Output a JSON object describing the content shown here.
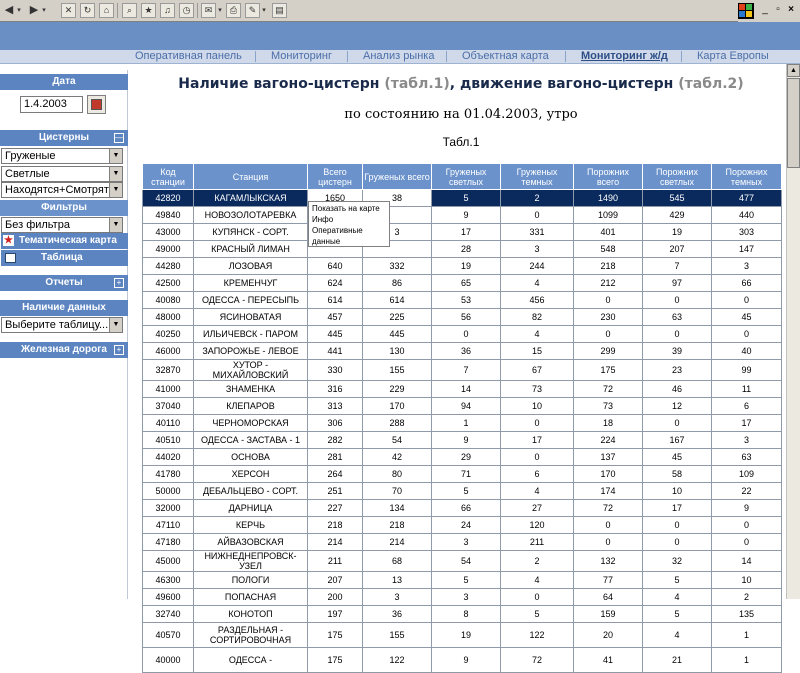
{
  "toolbar": {
    "icons": [
      "back-arrow",
      "forward-arrow",
      "stop",
      "refresh",
      "home",
      "search",
      "favorites",
      "media",
      "history",
      "mail",
      "print",
      "edit"
    ],
    "window_controls": [
      "_",
      "▫",
      "×"
    ]
  },
  "nav": {
    "items": [
      {
        "label": "Оперативная панель",
        "active": false
      },
      {
        "label": "Мониторинг",
        "active": false
      },
      {
        "label": "Анализ рынка",
        "active": false
      },
      {
        "label": "Объектная карта",
        "active": false
      },
      {
        "label": "Мониторинг ж/д",
        "active": true
      },
      {
        "label": "Карта Европы",
        "active": false
      }
    ]
  },
  "sidebar": {
    "date_header": "Дата",
    "date_value": "1.4.2003",
    "tanks_header": "Цистерны",
    "selects": [
      "Груженые",
      "Светлые",
      "Находятся+Смотрят"
    ],
    "filters_header": "Фильтры",
    "filter_select": "Без фильтра",
    "thematic_map": "Тематическая карта",
    "table_link": "Таблица",
    "reports_header": "Отчеты",
    "availability_header": "Наличие данных",
    "availability_select": "Выберите таблицу...",
    "railway_header": "Железная дорога",
    "collapse_glyph": "—",
    "expand_glyph": "+"
  },
  "main": {
    "title_prefix": "Наличие вагоно-цистерн ",
    "title_tab1": "(табл.1)",
    "title_middle": ", движение вагоно-цистерн ",
    "title_tab2": "(табл.2)",
    "subtitle": "по состоянию на 01.04.2003, утро",
    "table_label": "Табл.1"
  },
  "table": {
    "columns": [
      "Код станции",
      "Станция",
      "Всего цистерн",
      "Груженых всего",
      "Груженых светлых",
      "Груженых темных",
      "Порожних всего",
      "Порожних светлых",
      "Порожних темных"
    ],
    "rows": [
      [
        "42820",
        "КАГАМЛЫКСКАЯ",
        "1650",
        "38",
        "5",
        "2",
        "1490",
        "545",
        "477"
      ],
      [
        "49840",
        "НОВОЗОЛОТАРЕВКА",
        "",
        "",
        "9",
        "0",
        "1099",
        "429",
        "440"
      ],
      [
        "43000",
        "КУПЯНСК - СОРТ.",
        "",
        "3",
        "17",
        "331",
        "401",
        "19",
        "303"
      ],
      [
        "49000",
        "КРАСНЫЙ ЛИМАН",
        "",
        "",
        "28",
        "3",
        "548",
        "207",
        "147"
      ],
      [
        "44280",
        "ЛОЗОВАЯ",
        "640",
        "332",
        "19",
        "244",
        "218",
        "7",
        "3"
      ],
      [
        "42500",
        "КРЕМЕНЧУГ",
        "624",
        "86",
        "65",
        "4",
        "212",
        "97",
        "66"
      ],
      [
        "40080",
        "ОДЕССА - ПЕРЕСЫПЬ",
        "614",
        "614",
        "53",
        "456",
        "0",
        "0",
        "0"
      ],
      [
        "48000",
        "ЯСИНОВАТАЯ",
        "457",
        "225",
        "56",
        "82",
        "230",
        "63",
        "45"
      ],
      [
        "40250",
        "ИЛЬИЧЕВСК - ПАРОМ",
        "445",
        "445",
        "0",
        "4",
        "0",
        "0",
        "0"
      ],
      [
        "46000",
        "ЗАПОРОЖЬЕ - ЛЕВОЕ",
        "441",
        "130",
        "36",
        "15",
        "299",
        "39",
        "40"
      ],
      [
        "32870",
        "ХУТОР - МИХАЙЛОВСКИЙ",
        "330",
        "155",
        "7",
        "67",
        "175",
        "23",
        "99"
      ],
      [
        "41000",
        "ЗНАМЕНКА",
        "316",
        "229",
        "14",
        "73",
        "72",
        "46",
        "11"
      ],
      [
        "37040",
        "КЛЕПАРОВ",
        "313",
        "170",
        "94",
        "10",
        "73",
        "12",
        "6"
      ],
      [
        "40110",
        "ЧЕРНОМОРСКАЯ",
        "306",
        "288",
        "1",
        "0",
        "18",
        "0",
        "17"
      ],
      [
        "40510",
        "ОДЕССА - ЗАСТАВА - 1",
        "282",
        "54",
        "9",
        "17",
        "224",
        "167",
        "3"
      ],
      [
        "44020",
        "ОСНОВА",
        "281",
        "42",
        "29",
        "0",
        "137",
        "45",
        "63"
      ],
      [
        "41780",
        "ХЕРСОН",
        "264",
        "80",
        "71",
        "6",
        "170",
        "58",
        "109"
      ],
      [
        "50000",
        "ДЕБАЛЬЦЕВО - СОРТ.",
        "251",
        "70",
        "5",
        "4",
        "174",
        "10",
        "22"
      ],
      [
        "32000",
        "ДАРНИЦА",
        "227",
        "134",
        "66",
        "27",
        "72",
        "17",
        "9"
      ],
      [
        "47110",
        "КЕРЧЬ",
        "218",
        "218",
        "24",
        "120",
        "0",
        "0",
        "0"
      ],
      [
        "47180",
        "АЙВАЗОВСКАЯ",
        "214",
        "214",
        "3",
        "211",
        "0",
        "0",
        "0"
      ],
      [
        "45000",
        "НИЖНЕДНЕПРОВСК-УЗЕЛ",
        "211",
        "68",
        "54",
        "2",
        "132",
        "32",
        "14"
      ],
      [
        "46300",
        "ПОЛОГИ",
        "207",
        "13",
        "5",
        "4",
        "77",
        "5",
        "10"
      ],
      [
        "49600",
        "ПОПАСНАЯ",
        "200",
        "3",
        "3",
        "0",
        "64",
        "4",
        "2"
      ],
      [
        "32740",
        "КОНОТОП",
        "197",
        "36",
        "8",
        "5",
        "159",
        "5",
        "135"
      ],
      [
        "40570",
        "РАЗДЕЛЬНАЯ - СОРТИРОВОЧНАЯ",
        "175",
        "155",
        "19",
        "122",
        "20",
        "4",
        "1"
      ],
      [
        "40000",
        "ОДЕССА -",
        "175",
        "122",
        "9",
        "72",
        "41",
        "21",
        "1"
      ]
    ]
  },
  "popup": {
    "items": [
      "Показать на карте",
      "Инфо",
      "Оперативные данные"
    ]
  },
  "colors": {
    "header_band": "#6a8fc4",
    "nav_bg": "#cfd9ea",
    "panel_head": "#5b84c1",
    "table_head": "#6b92cb",
    "selected_row": "#0a2a5e"
  }
}
